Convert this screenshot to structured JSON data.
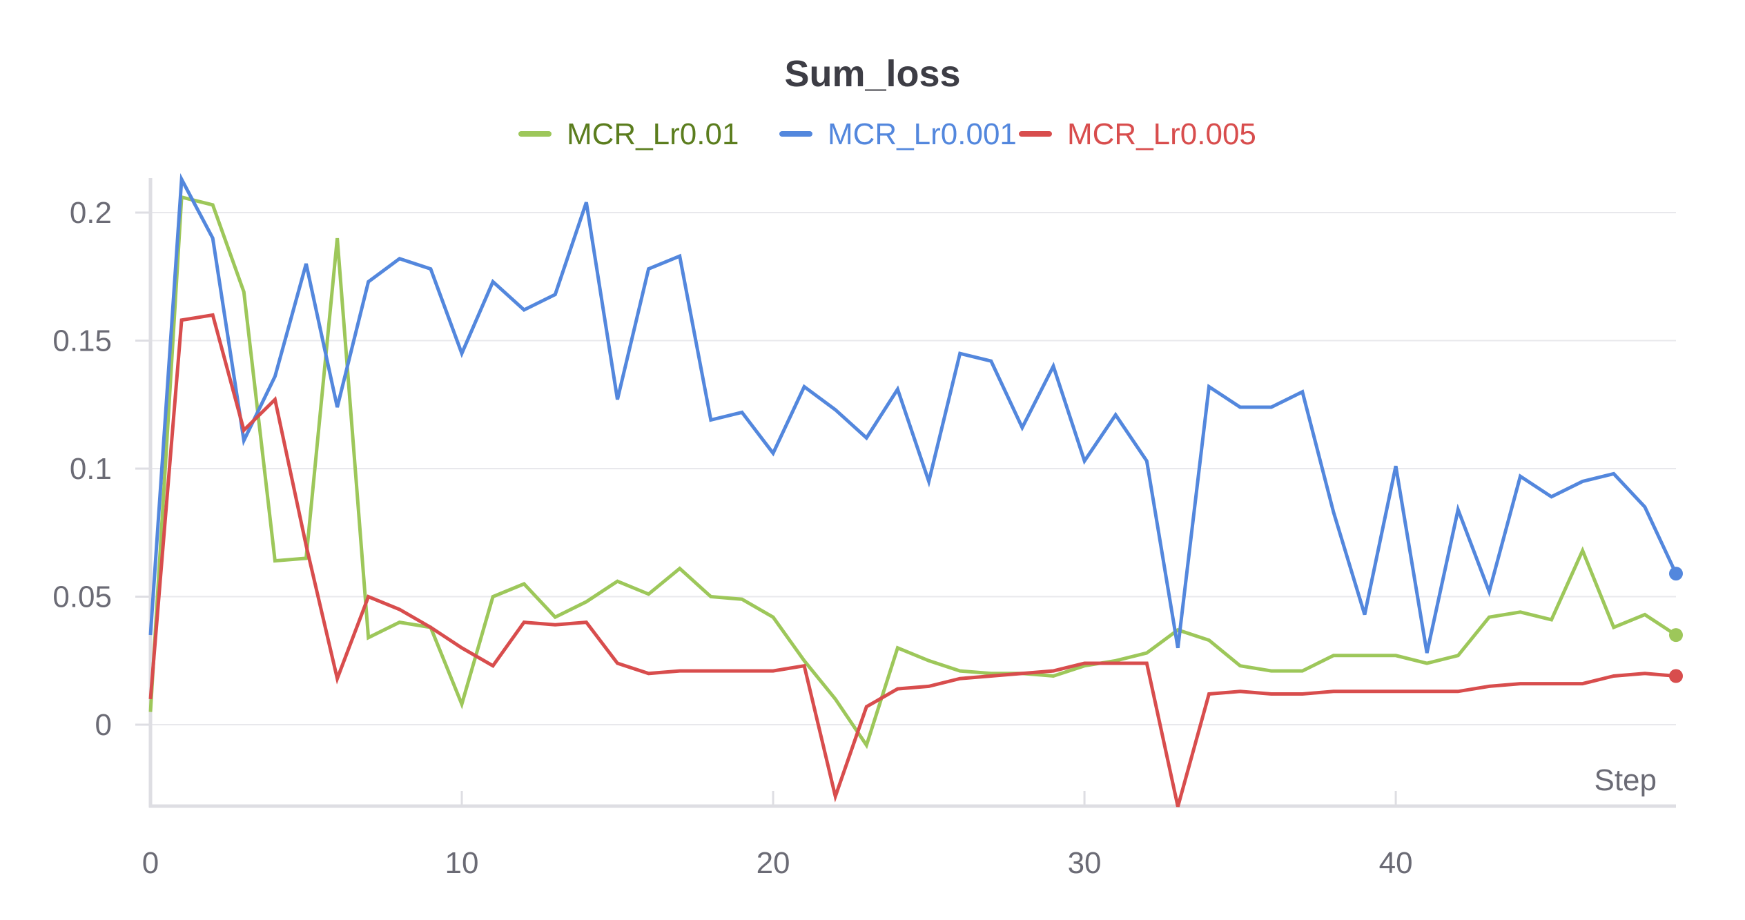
{
  "chart_data": {
    "type": "line",
    "title": "Sum_loss",
    "xlabel": "Step",
    "ylabel": "",
    "xlim": [
      0,
      49
    ],
    "ylim": [
      -0.032,
      0.213
    ],
    "x_ticks": [
      0,
      10,
      20,
      30,
      40
    ],
    "y_ticks": [
      0,
      0.05,
      0.1,
      0.15,
      0.2
    ],
    "x_tick_labels": [
      "0",
      "10",
      "20",
      "30",
      "40"
    ],
    "y_tick_labels": [
      "0",
      "0.05",
      "0.1",
      "0.15",
      "0.2"
    ],
    "grid": "horizontal",
    "legend_position": "top-center",
    "x": [
      0,
      1,
      2,
      3,
      4,
      5,
      6,
      7,
      8,
      9,
      10,
      11,
      12,
      13,
      14,
      15,
      16,
      17,
      18,
      19,
      20,
      21,
      22,
      23,
      24,
      25,
      26,
      27,
      28,
      29,
      30,
      31,
      32,
      33,
      34,
      35,
      36,
      37,
      38,
      39,
      40,
      41,
      42,
      43,
      44,
      45,
      46,
      47,
      48,
      49
    ],
    "series": [
      {
        "name": "MCR_Lr0.01",
        "color": "#9dc75a",
        "label_color": "#5b7d1e",
        "values": [
          0.005,
          0.206,
          0.203,
          0.169,
          0.064,
          0.065,
          0.19,
          0.034,
          0.04,
          0.038,
          0.008,
          0.05,
          0.055,
          0.042,
          0.048,
          0.056,
          0.051,
          0.061,
          0.05,
          0.049,
          0.042,
          0.025,
          0.01,
          -0.008,
          0.03,
          0.025,
          0.021,
          0.02,
          0.02,
          0.019,
          0.023,
          0.025,
          0.028,
          0.037,
          0.033,
          0.023,
          0.021,
          0.021,
          0.027,
          0.027,
          0.027,
          0.024,
          0.027,
          0.042,
          0.044,
          0.041,
          0.068,
          0.038,
          0.043,
          0.035
        ]
      },
      {
        "name": "MCR_Lr0.001",
        "color": "#5387dd",
        "label_color": "#5387dd",
        "values": [
          0.035,
          0.213,
          0.19,
          0.111,
          0.136,
          0.18,
          0.124,
          0.173,
          0.182,
          0.178,
          0.145,
          0.173,
          0.162,
          0.168,
          0.204,
          0.127,
          0.178,
          0.183,
          0.119,
          0.122,
          0.106,
          0.132,
          0.123,
          0.112,
          0.131,
          0.095,
          0.145,
          0.142,
          0.116,
          0.14,
          0.103,
          0.121,
          0.103,
          0.03,
          0.132,
          0.124,
          0.124,
          0.13,
          0.083,
          0.043,
          0.101,
          0.028,
          0.084,
          0.052,
          0.097,
          0.089,
          0.095,
          0.098,
          0.085,
          0.059
        ]
      },
      {
        "name": "MCR_Lr0.005",
        "color": "#d84d4d",
        "label_color": "#d84d4d",
        "values": [
          0.01,
          0.158,
          0.16,
          0.115,
          0.127,
          0.07,
          0.018,
          0.05,
          0.045,
          0.038,
          0.03,
          0.023,
          0.04,
          0.039,
          0.04,
          0.024,
          0.02,
          0.021,
          0.021,
          0.021,
          0.021,
          0.023,
          -0.028,
          0.007,
          0.014,
          0.015,
          0.018,
          0.019,
          0.02,
          0.021,
          0.024,
          0.024,
          0.024,
          -0.032,
          0.012,
          0.013,
          0.012,
          0.012,
          0.013,
          0.013,
          0.013,
          0.013,
          0.013,
          0.015,
          0.016,
          0.016,
          0.016,
          0.019,
          0.02,
          0.019
        ]
      }
    ]
  }
}
